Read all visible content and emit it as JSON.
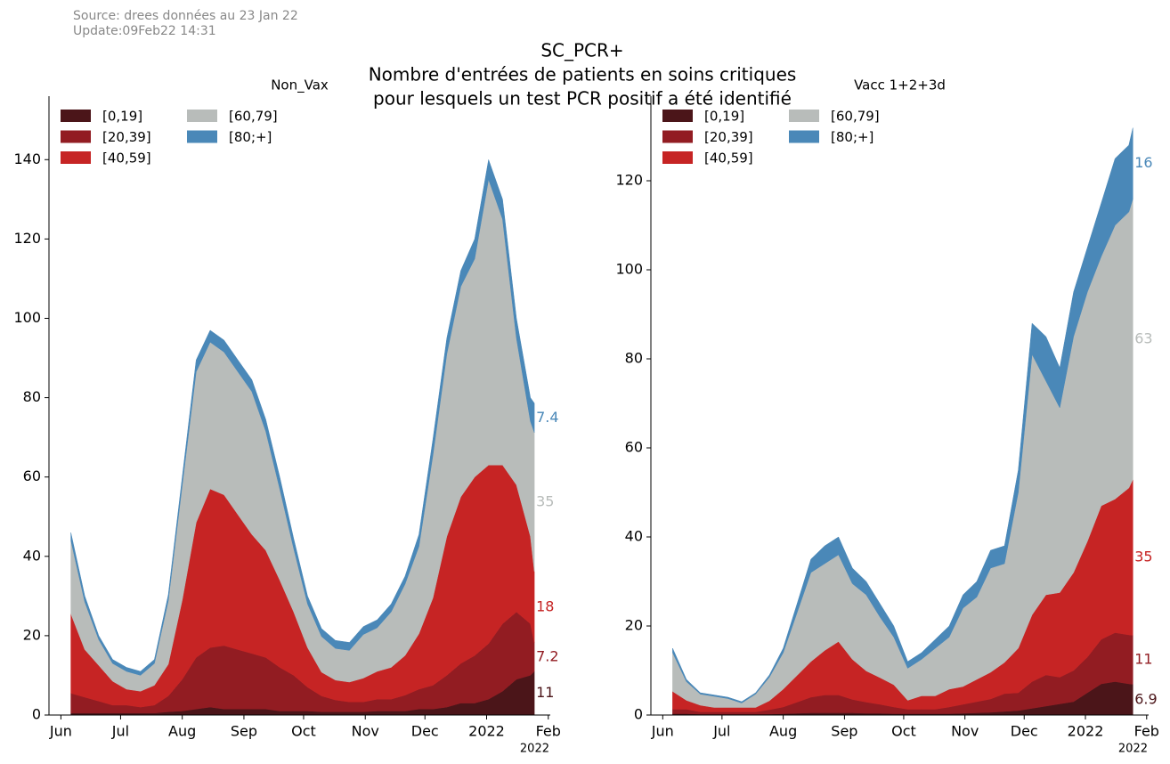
{
  "header": {
    "source": "Source: drees données au 23 Jan 22",
    "update": "Update:09Feb22 14:31",
    "title": [
      "SC_PCR+",
      "Nombre d'entrées de patients en soins critiques",
      "pour lesquels un test PCR positif a été identifié"
    ]
  },
  "chart_data": [
    {
      "type": "stacked-area",
      "title": "Non_Vax",
      "legend": "upper left",
      "x_offset_label": "2022",
      "x": [
        "2021-06-06",
        "2021-06-13",
        "2021-06-20",
        "2021-06-27",
        "2021-07-04",
        "2021-07-11",
        "2021-07-18",
        "2021-07-25",
        "2021-08-01",
        "2021-08-08",
        "2021-08-15",
        "2021-08-22",
        "2021-08-29",
        "2021-09-05",
        "2021-09-12",
        "2021-09-19",
        "2021-09-26",
        "2021-10-03",
        "2021-10-10",
        "2021-10-17",
        "2021-10-24",
        "2021-10-31",
        "2021-11-07",
        "2021-11-14",
        "2021-11-21",
        "2021-11-28",
        "2021-12-05",
        "2021-12-12",
        "2021-12-19",
        "2021-12-26",
        "2022-01-02",
        "2022-01-09",
        "2022-01-16",
        "2022-01-23",
        "2022-01-25"
      ],
      "xlim": [
        "2021-05-26",
        "2022-02-02"
      ],
      "xticks": [
        {
          "value": "2021-06-01",
          "label": "Jun"
        },
        {
          "value": "2021-07-01",
          "label": "Jul"
        },
        {
          "value": "2021-08-01",
          "label": "Aug"
        },
        {
          "value": "2021-09-01",
          "label": "Sep"
        },
        {
          "value": "2021-10-01",
          "label": "Oct"
        },
        {
          "value": "2021-11-01",
          "label": "Nov"
        },
        {
          "value": "2021-12-01",
          "label": "Dec"
        },
        {
          "value": "2022-01-01",
          "label": "2022"
        },
        {
          "value": "2022-02-01",
          "label": "Feb"
        }
      ],
      "ylim": [
        0,
        156
      ],
      "yticks": [
        0,
        20,
        40,
        60,
        80,
        100,
        120,
        140
      ],
      "series": [
        {
          "name": "[0,19]",
          "color": "#4b1519",
          "values": [
            0.5,
            0.5,
            0.5,
            0.5,
            0.5,
            0.5,
            0.5,
            0.8,
            1,
            1.5,
            2,
            1.5,
            1.5,
            1.5,
            1.5,
            1,
            1,
            1,
            0.8,
            0.8,
            0.8,
            0.8,
            1,
            1,
            1,
            1.5,
            1.5,
            2,
            3,
            3,
            4,
            6,
            9,
            10,
            11
          ]
        },
        {
          "name": "[20,39]",
          "color": "#921c22",
          "values": [
            5,
            4,
            3,
            2,
            2,
            1.5,
            2,
            4,
            8,
            13,
            15,
            16,
            15,
            14,
            13,
            11,
            9,
            6,
            4,
            3,
            2.5,
            2.5,
            3,
            3,
            4,
            5,
            6,
            8,
            10,
            12,
            14,
            17,
            17,
            13,
            7.2
          ]
        },
        {
          "name": "[40,59]",
          "color": "#c62424",
          "values": [
            20,
            12,
            9,
            6,
            4,
            4,
            5,
            8,
            20,
            34,
            40,
            38,
            34,
            30,
            27,
            22,
            16,
            10,
            6,
            5,
            5,
            6,
            7,
            8,
            10,
            14,
            22,
            35,
            42,
            45,
            45,
            40,
            32,
            22,
            18
          ]
        },
        {
          "name": "[60,79]",
          "color": "#b8bcba",
          "values": [
            18.5,
            12,
            6.5,
            4.5,
            4.5,
            4,
            5.5,
            16,
            29,
            38,
            37,
            36,
            36,
            36,
            30,
            23,
            16,
            11,
            9,
            8,
            8,
            11,
            11,
            14,
            18,
            22,
            36,
            46,
            53,
            55,
            72,
            62,
            37,
            29,
            35
          ]
        },
        {
          "name": "[80;+]",
          "color": "#4a88b8",
          "values": [
            2,
            1.5,
            1,
            1,
            1,
            1,
            1,
            1.5,
            2,
            3,
            3,
            3,
            3,
            3,
            3,
            3,
            2.5,
            2,
            2,
            2,
            2,
            2,
            2,
            2,
            2,
            3,
            4,
            4,
            4,
            5,
            5,
            5,
            5,
            6,
            7.4
          ]
        }
      ]
    },
    {
      "type": "stacked-area",
      "title": "Vacc 1+2+3d",
      "legend": "upper left",
      "x_offset_label": "2022",
      "x": [
        "2021-06-06",
        "2021-06-13",
        "2021-06-20",
        "2021-06-27",
        "2021-07-04",
        "2021-07-11",
        "2021-07-18",
        "2021-07-25",
        "2021-08-01",
        "2021-08-08",
        "2021-08-15",
        "2021-08-22",
        "2021-08-29",
        "2021-09-05",
        "2021-09-12",
        "2021-09-19",
        "2021-09-26",
        "2021-10-03",
        "2021-10-10",
        "2021-10-17",
        "2021-10-24",
        "2021-10-31",
        "2021-11-07",
        "2021-11-14",
        "2021-11-21",
        "2021-11-28",
        "2021-12-05",
        "2021-12-12",
        "2021-12-19",
        "2021-12-26",
        "2022-01-02",
        "2022-01-09",
        "2022-01-16",
        "2022-01-23",
        "2022-01-25"
      ],
      "xlim": [
        "2021-05-26",
        "2022-02-02"
      ],
      "xticks": [
        {
          "value": "2021-06-01",
          "label": "Jun"
        },
        {
          "value": "2021-07-01",
          "label": "Jul"
        },
        {
          "value": "2021-08-01",
          "label": "Aug"
        },
        {
          "value": "2021-09-01",
          "label": "Sep"
        },
        {
          "value": "2021-10-01",
          "label": "Oct"
        },
        {
          "value": "2021-11-01",
          "label": "Nov"
        },
        {
          "value": "2021-12-01",
          "label": "Dec"
        },
        {
          "value": "2022-01-01",
          "label": "2022"
        },
        {
          "value": "2022-02-01",
          "label": "Feb"
        }
      ],
      "ylim": [
        0,
        139
      ],
      "yticks": [
        0,
        20,
        40,
        60,
        80,
        100,
        120
      ],
      "series": [
        {
          "name": "[0,19]",
          "color": "#4b1519",
          "values": [
            0.3,
            0.3,
            0.2,
            0.2,
            0.2,
            0.2,
            0.2,
            0.2,
            0.3,
            0.4,
            0.5,
            0.5,
            0.5,
            0.5,
            0.4,
            0.4,
            0.3,
            0.3,
            0.3,
            0.3,
            0.3,
            0.4,
            0.5,
            0.6,
            0.8,
            1,
            1.5,
            2,
            2.5,
            3,
            5,
            7,
            7.5,
            7,
            6.9
          ]
        },
        {
          "name": "[20,39]",
          "color": "#921c22",
          "values": [
            1,
            1,
            0.5,
            0.5,
            0.5,
            0.5,
            0.5,
            1,
            1.5,
            2.5,
            3.5,
            4,
            4,
            3,
            2.5,
            2,
            1.5,
            1,
            1,
            1,
            1.5,
            2,
            2.5,
            3,
            4,
            4,
            6,
            7,
            6,
            7,
            8,
            10,
            11,
            11,
            11
          ]
        },
        {
          "name": "[40,59]",
          "color": "#c62424",
          "values": [
            4,
            2,
            1.5,
            1,
            1,
            1,
            1,
            2,
            4,
            6,
            8,
            10,
            12,
            9,
            7,
            6,
            5,
            2,
            3,
            3,
            4,
            4,
            5,
            6,
            7,
            10,
            15,
            18,
            19,
            22,
            26,
            30,
            30,
            33,
            35
          ]
        },
        {
          "name": "[60,79]",
          "color": "#b8bcba",
          "values": [
            8.7,
            4.2,
            2.5,
            2.5,
            2,
            1,
            3,
            5.3,
            8.2,
            14.1,
            20,
            19.5,
            19.5,
            17,
            17.1,
            13.6,
            10.7,
            7.2,
            8.2,
            10.7,
            11.7,
            17.6,
            18.5,
            23.4,
            22.2,
            35,
            58.5,
            48,
            41.5,
            53,
            56,
            56,
            61.5,
            62,
            63
          ]
        },
        {
          "name": "[80;+]",
          "color": "#4a88b8",
          "values": [
            1,
            0.5,
            0.3,
            0.3,
            0.3,
            0.3,
            0.3,
            0.5,
            1,
            2,
            3,
            4,
            4,
            3.5,
            3,
            3,
            2.5,
            1.5,
            1.5,
            2,
            2.5,
            3,
            3.5,
            4,
            4,
            5,
            7,
            10,
            9,
            10,
            10,
            12,
            15,
            15,
            16
          ]
        }
      ]
    }
  ]
}
